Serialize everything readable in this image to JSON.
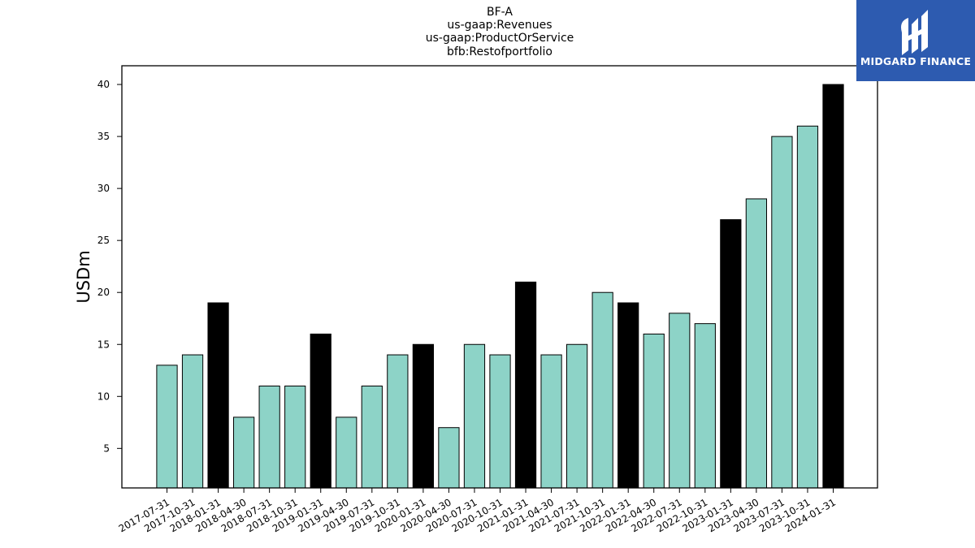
{
  "chart_data": {
    "type": "bar",
    "title_lines": [
      "BF-A",
      "us-gaap:Revenues",
      "us-gaap:ProductOrService",
      "bfb:Restofportfolio"
    ],
    "ylabel": "USDm",
    "xlabel": "",
    "ylim": [
      1.2,
      41.8
    ],
    "yticks": [
      5,
      10,
      15,
      20,
      25,
      30,
      35,
      40
    ],
    "grid": false,
    "categories": [
      "2017-07-31",
      "2017-10-31",
      "2018-01-31",
      "2018-04-30",
      "2018-07-31",
      "2018-10-31",
      "2019-01-31",
      "2019-04-30",
      "2019-07-31",
      "2019-10-31",
      "2020-01-31",
      "2020-04-30",
      "2020-07-31",
      "2020-10-31",
      "2021-01-31",
      "2021-04-30",
      "2021-07-31",
      "2021-10-31",
      "2022-01-31",
      "2022-04-30",
      "2022-07-31",
      "2022-10-31",
      "2023-01-31",
      "2023-04-30",
      "2023-07-31",
      "2023-10-31",
      "2024-01-31"
    ],
    "values": [
      13,
      14,
      19,
      8,
      11,
      11,
      16,
      8,
      11,
      14,
      15,
      7,
      15,
      14,
      21,
      14,
      15,
      20,
      19,
      16,
      18,
      17,
      27,
      29,
      35,
      36,
      40
    ],
    "highlight": [
      false,
      false,
      true,
      false,
      false,
      false,
      true,
      false,
      false,
      false,
      true,
      false,
      false,
      false,
      true,
      false,
      false,
      false,
      true,
      false,
      false,
      false,
      true,
      false,
      false,
      false,
      true
    ],
    "colors": {
      "bar": "#8dd3c7",
      "highlight_bar": "#000000",
      "edge": "#000000"
    }
  },
  "logo": {
    "text": "MIDGARD FINANCE",
    "background": "#2d5bb0"
  }
}
